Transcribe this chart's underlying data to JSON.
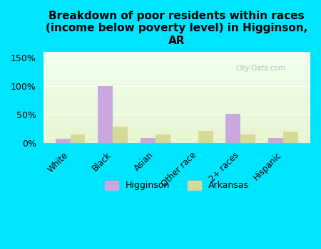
{
  "title": "Breakdown of poor residents within races\n(income below poverty level) in Higginson,\nAR",
  "categories": [
    "White",
    "Black",
    "Asian",
    "Other race",
    "2+ races",
    "Hispanic"
  ],
  "higginson_values": [
    8,
    100,
    9,
    0,
    52,
    9
  ],
  "arkansas_values": [
    16,
    29,
    16,
    22,
    15,
    21
  ],
  "higginson_color": "#c9a8e0",
  "arkansas_color": "#d4db99",
  "bg_color": "#00e5ff",
  "ylim": [
    0,
    160
  ],
  "yticks": [
    0,
    50,
    100,
    150
  ],
  "ytick_labels": [
    "0%",
    "50%",
    "100%",
    "150%"
  ],
  "bar_width": 0.35,
  "title_fontsize": 11,
  "watermark": "City-Data.com"
}
